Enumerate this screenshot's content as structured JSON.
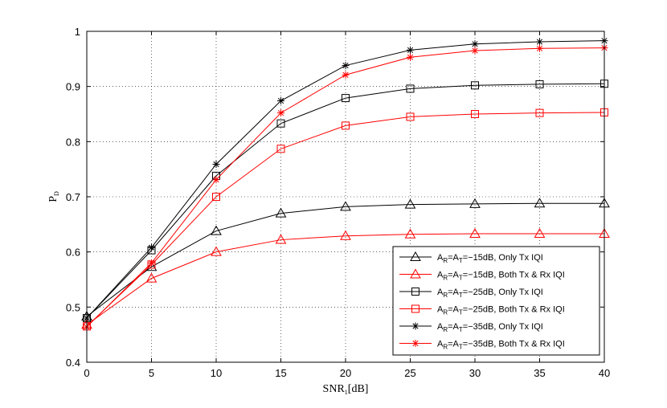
{
  "chart_data": {
    "type": "line",
    "x": [
      0,
      5,
      10,
      15,
      20,
      25,
      30,
      35,
      40
    ],
    "xlim": [
      0,
      40
    ],
    "ylim": [
      0.4,
      1.0
    ],
    "xticks": [
      "0",
      "5",
      "10",
      "15",
      "20",
      "25",
      "30",
      "35",
      "40"
    ],
    "yticks": [
      "0.4",
      "0.5",
      "0.6",
      "0.7",
      "0.8",
      "0.9",
      "1"
    ],
    "grid": true,
    "legend_position": "bottom-right",
    "xlabel": {
      "main": "SNR",
      "sub": "1",
      "suffix": "[dB]"
    },
    "ylabel": {
      "main": "P",
      "sub": "D"
    },
    "series": [
      {
        "name": "A_R=A_T=−15dB, Only Tx IQI",
        "legend": {
          "a": "A",
          "r": "R",
          "eq": "=A",
          "t": "T",
          "rest": "=−15dB, Only Tx IQI"
        },
        "color": "#000000",
        "marker": "triangle",
        "values": [
          0.483,
          0.573,
          0.638,
          0.67,
          0.682,
          0.686,
          0.687,
          0.688,
          0.688
        ]
      },
      {
        "name": "A_R=A_T=−15dB, Both Tx & Rx IQI",
        "legend": {
          "a": "A",
          "r": "R",
          "eq": "=A",
          "t": "T",
          "rest": "=−15dB, Both Tx & Rx IQI"
        },
        "color": "#ff0000",
        "marker": "triangle",
        "values": [
          0.468,
          0.552,
          0.6,
          0.622,
          0.629,
          0.632,
          0.633,
          0.633,
          0.633
        ]
      },
      {
        "name": "A_R=A_T=−25dB, Only Tx IQI",
        "legend": {
          "a": "A",
          "r": "R",
          "eq": "=A",
          "t": "T",
          "rest": "=−25dB, Only Tx IQI"
        },
        "color": "#000000",
        "marker": "square",
        "values": [
          0.48,
          0.603,
          0.738,
          0.833,
          0.879,
          0.896,
          0.902,
          0.904,
          0.905
        ]
      },
      {
        "name": "A_R=A_T=−25dB, Both Tx & Rx IQI",
        "legend": {
          "a": "A",
          "r": "R",
          "eq": "=A",
          "t": "T",
          "rest": "=−25dB, Both Tx & Rx IQI"
        },
        "color": "#ff0000",
        "marker": "square",
        "values": [
          0.465,
          0.577,
          0.7,
          0.787,
          0.829,
          0.845,
          0.85,
          0.852,
          0.853
        ]
      },
      {
        "name": "A_R=A_T=−35dB, Only Tx IQI",
        "legend": {
          "a": "A",
          "r": "R",
          "eq": "=A",
          "t": "T",
          "rest": "=−35dB, Only Tx IQI"
        },
        "color": "#000000",
        "marker": "star",
        "values": [
          0.48,
          0.608,
          0.759,
          0.874,
          0.938,
          0.966,
          0.977,
          0.981,
          0.983
        ]
      },
      {
        "name": "A_R=A_T=−35dB, Both Tx & Rx IQI",
        "legend": {
          "a": "A",
          "r": "R",
          "eq": "=A",
          "t": "T",
          "rest": "=−35dB, Both Tx & Rx IQI"
        },
        "color": "#ff0000",
        "marker": "star",
        "values": [
          0.464,
          0.58,
          0.731,
          0.852,
          0.921,
          0.953,
          0.965,
          0.969,
          0.97
        ]
      }
    ]
  }
}
